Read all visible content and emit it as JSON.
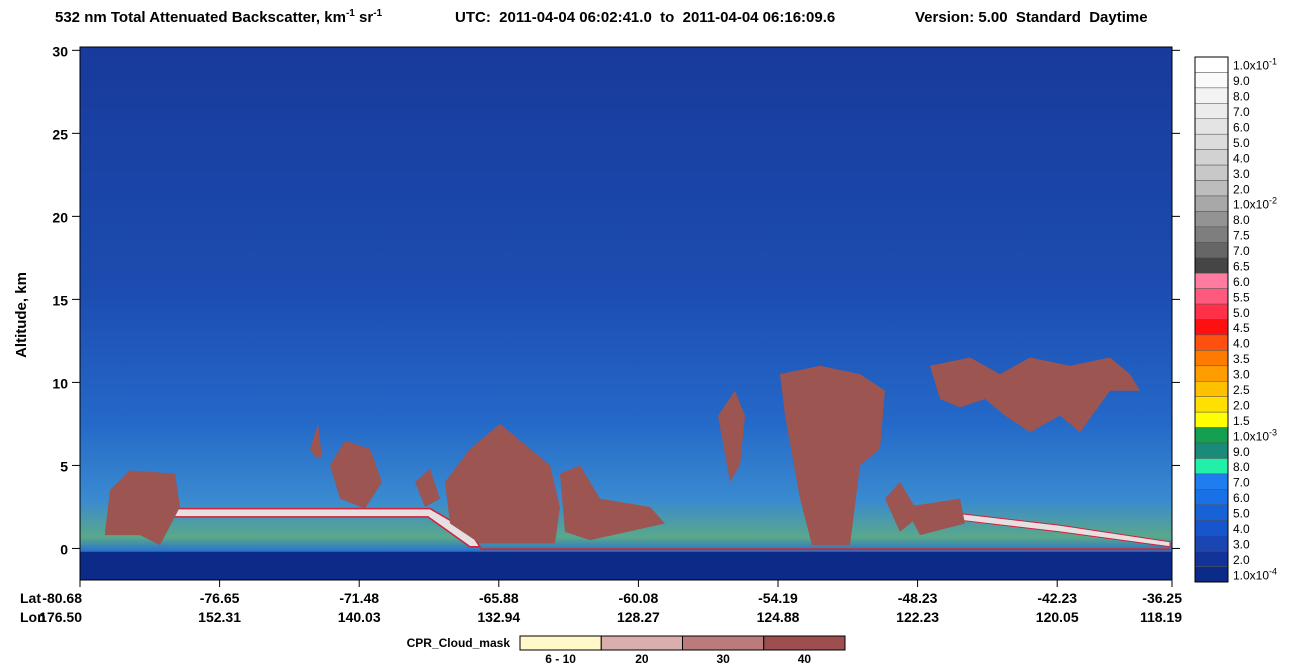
{
  "chart_data": {
    "type": "curtain",
    "title": "532 nm Total Attenuated Backscatter, km",
    "title_sup": "-1",
    "title_unit2": " sr",
    "title_sup2": "-1",
    "utc": "UTC:  2011-04-04 06:02:41.0  to  2011-04-04 06:16:09.6",
    "version": "Version: 5.00  Standard  Daytime",
    "y_label": "Altitude, km",
    "ylim": [
      -1.9,
      30.2
    ],
    "yticks": [
      0,
      5,
      10,
      15,
      20,
      25,
      30
    ],
    "lat_label": "Lat",
    "lon_label": "Lon",
    "lat_ticks": [
      -80.68,
      -76.65,
      -71.48,
      -65.88,
      -60.08,
      -54.19,
      -48.23,
      -42.23,
      -36.25
    ],
    "lon_ticks": [
      {
        "value": 176.5,
        "label": "176.50"
      },
      152.31,
      140.03,
      132.94,
      128.27,
      124.88,
      122.23,
      120.05,
      118.19
    ],
    "colorbar": [
      {
        "label": "1.0x10",
        "exp": "-1",
        "color": "#ffffff"
      },
      {
        "label": "9.0",
        "color": "#fafafa"
      },
      {
        "label": "8.0",
        "color": "#f3f3f3"
      },
      {
        "label": "7.0",
        "color": "#ececec"
      },
      {
        "label": "6.0",
        "color": "#e4e4e4"
      },
      {
        "label": "5.0",
        "color": "#dcdcdc"
      },
      {
        "label": "4.0",
        "color": "#d2d2d2"
      },
      {
        "label": "3.0",
        "color": "#c8c8c8"
      },
      {
        "label": "2.0",
        "color": "#bdbdbd"
      },
      {
        "label": "1.0x10",
        "exp": "-2",
        "color": "#a8a8a8"
      },
      {
        "label": "8.0",
        "color": "#939393"
      },
      {
        "label": "7.5",
        "color": "#7e7e7e"
      },
      {
        "label": "7.0",
        "color": "#666666"
      },
      {
        "label": "6.5",
        "color": "#454545"
      },
      {
        "label": "6.0",
        "color": "#ff7ca0"
      },
      {
        "label": "5.5",
        "color": "#ff5a7d"
      },
      {
        "label": "5.0",
        "color": "#ff3048"
      },
      {
        "label": "4.5",
        "color": "#ff1010"
      },
      {
        "label": "4.0",
        "color": "#ff5010"
      },
      {
        "label": "3.5",
        "color": "#ff7a00"
      },
      {
        "label": "3.0",
        "color": "#ff9c00"
      },
      {
        "label": "2.5",
        "color": "#ffc000"
      },
      {
        "label": "2.0",
        "color": "#ffe000"
      },
      {
        "label": "1.5",
        "color": "#ffff00"
      },
      {
        "label": "1.0x10",
        "exp": "-3",
        "color": "#14a050"
      },
      {
        "label": "9.0",
        "color": "#1a8a7a"
      },
      {
        "label": "8.0",
        "color": "#20f0a8"
      },
      {
        "label": "7.0",
        "color": "#1e7ef0"
      },
      {
        "label": "6.0",
        "color": "#1a70e6"
      },
      {
        "label": "5.0",
        "color": "#1862d8"
      },
      {
        "label": "4.0",
        "color": "#1656cc"
      },
      {
        "label": "3.0",
        "color": "#1a46b4"
      },
      {
        "label": "2.0",
        "color": "#12349a"
      },
      {
        "label": "1.0x10",
        "exp": "-4",
        "color": "#0c2a88"
      }
    ],
    "cloud_mask_label": "CPR_Cloud_mask",
    "cloud_mask": [
      {
        "label": "6 - 10",
        "color": "#fff8c8"
      },
      {
        "label": "20",
        "color": "#dbaeae"
      },
      {
        "label": "30",
        "color": "#bb7b7b"
      },
      {
        "label": "40",
        "color": "#9d4f4f"
      }
    ]
  }
}
